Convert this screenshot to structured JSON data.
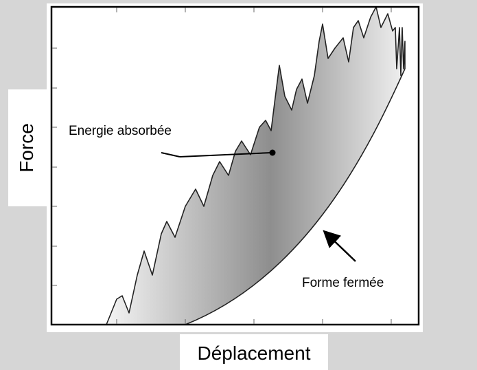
{
  "axes": {
    "y_label": "Force",
    "x_label": "Déplacement"
  },
  "annotations": [
    "Energie absorbée",
    "Forme fermée"
  ]
}
